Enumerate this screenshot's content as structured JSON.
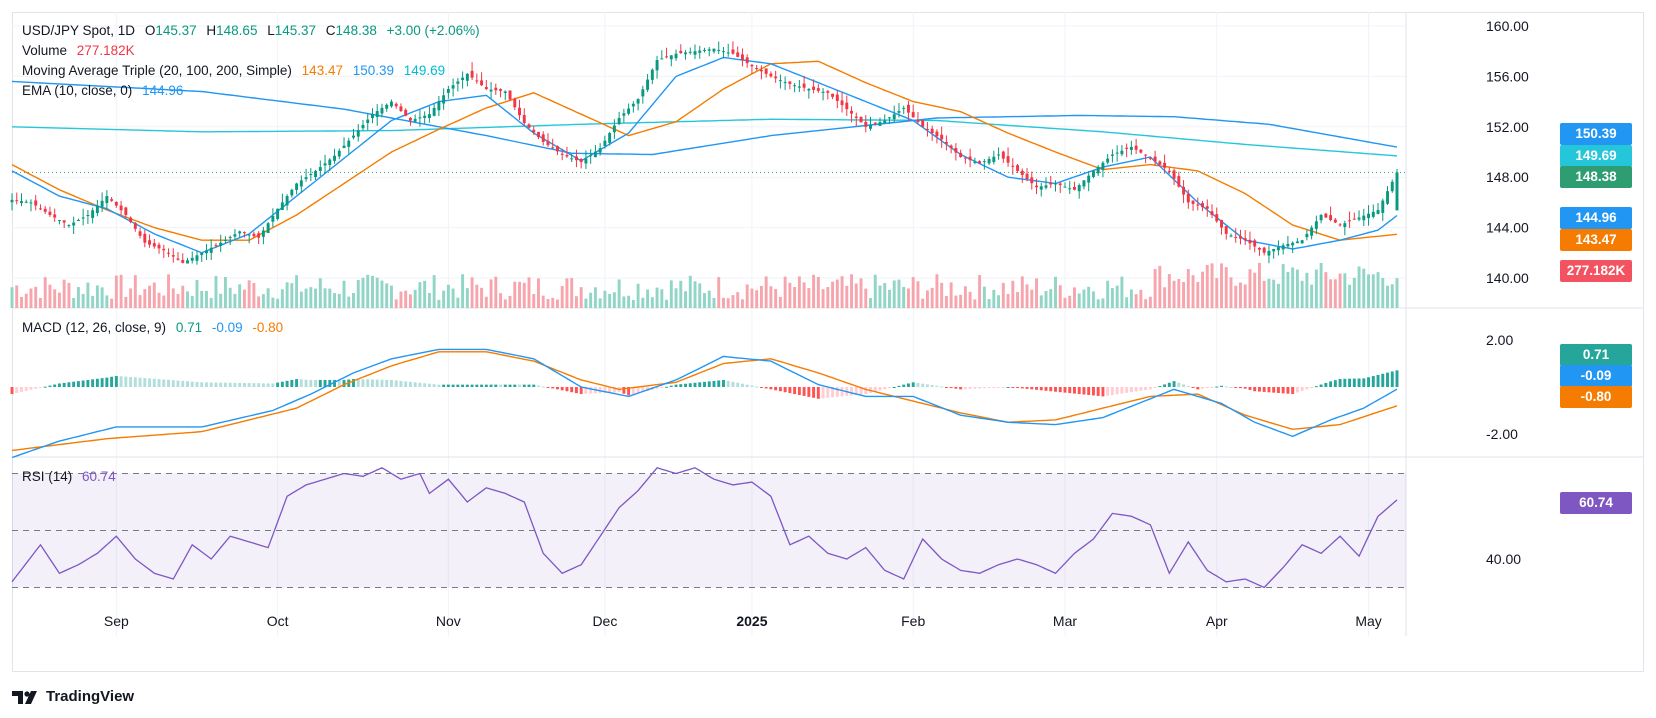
{
  "legend": {
    "symbol": "USD/JPY Spot, 1D",
    "o_label": "O",
    "o_val": "145.37",
    "h_label": "H",
    "h_val": "148.65",
    "l_label": "L",
    "l_val": "145.37",
    "c_label": "C",
    "c_val": "148.38",
    "change": "+3.00 (+2.06%)",
    "volume_label": "Volume",
    "volume_val": "277.182K",
    "ma_label": "Moving Average Triple (20, 100, 200, Simple)",
    "ma20": "143.47",
    "ma100": "150.39",
    "ma200": "149.69",
    "ema_label": "EMA (10, close, 0)",
    "ema_val": "144.96",
    "macd_label": "MACD (12, 26, close, 9)",
    "macd_hist": "0.71",
    "macd_line": "-0.09",
    "macd_signal": "-0.80",
    "rsi_label": "RSI (14)",
    "rsi_val": "60.74"
  },
  "tags": {
    "ma100": "150.39",
    "ma200": "149.69",
    "close": "148.38",
    "ema": "144.96",
    "ma20": "143.47",
    "volume": "277.182K",
    "macd_hist": "0.71",
    "macd_line": "-0.09",
    "macd_signal": "-0.80",
    "rsi": "60.74"
  },
  "colors": {
    "up": "#089981",
    "down": "#f23645",
    "vol_up": "#91d5c6",
    "vol_down": "#f7a5ad",
    "ma20": "#f57c00",
    "ma100": "#2196f3",
    "ma200": "#26c6da",
    "ema": "#2196f3",
    "macd": "#2196f3",
    "signal": "#f57c00",
    "rsi": "#7e57c2"
  },
  "footer": {
    "brand": "TradingView"
  },
  "chart_data": [
    {
      "type": "candlestick",
      "title": "USD/JPY Spot, 1D",
      "x_ticks": [
        "Sep",
        "Oct",
        "Nov",
        "Dec",
        "2025",
        "Feb",
        "Mar",
        "Apr",
        "May"
      ],
      "y_ticks": [
        "140.00",
        "144.00",
        "148.00",
        "152.00",
        "156.00",
        "160.00"
      ],
      "y_tick_values": [
        140,
        144,
        148,
        152,
        156,
        160
      ],
      "ylim": [
        139.5,
        161.5
      ],
      "close_anchors": [
        [
          0,
          146.2
        ],
        [
          4,
          146.0
        ],
        [
          8,
          145.0
        ],
        [
          12,
          144.2
        ],
        [
          16,
          145.0
        ],
        [
          20,
          146.5
        ],
        [
          24,
          145.0
        ],
        [
          28,
          142.8
        ],
        [
          32,
          142.2
        ],
        [
          36,
          141.2
        ],
        [
          40,
          142.0
        ],
        [
          44,
          142.8
        ],
        [
          48,
          143.7
        ],
        [
          52,
          143.2
        ],
        [
          56,
          145.5
        ],
        [
          60,
          147.5
        ],
        [
          64,
          148.5
        ],
        [
          68,
          149.7
        ],
        [
          72,
          151.3
        ],
        [
          76,
          153.0
        ],
        [
          80,
          154.0
        ],
        [
          84,
          152.5
        ],
        [
          88,
          153.0
        ],
        [
          92,
          155.0
        ],
        [
          96,
          156.2
        ],
        [
          100,
          155.0
        ],
        [
          104,
          154.8
        ],
        [
          108,
          152.3
        ],
        [
          112,
          150.8
        ],
        [
          116,
          149.8
        ],
        [
          120,
          149.2
        ],
        [
          124,
          150.3
        ],
        [
          128,
          152.7
        ],
        [
          132,
          154.2
        ],
        [
          136,
          157.3
        ],
        [
          140,
          157.8
        ],
        [
          144,
          158.0
        ],
        [
          148,
          158.2
        ],
        [
          152,
          157.8
        ],
        [
          156,
          156.8
        ],
        [
          160,
          156.0
        ],
        [
          164,
          155.4
        ],
        [
          168,
          155.0
        ],
        [
          172,
          154.7
        ],
        [
          176,
          153.4
        ],
        [
          180,
          152.0
        ],
        [
          184,
          152.5
        ],
        [
          188,
          153.5
        ],
        [
          192,
          152.0
        ],
        [
          196,
          151.0
        ],
        [
          200,
          149.6
        ],
        [
          204,
          149.1
        ],
        [
          208,
          149.8
        ],
        [
          212,
          148.5
        ],
        [
          216,
          147.2
        ],
        [
          220,
          147.5
        ],
        [
          224,
          147.0
        ],
        [
          228,
          148.5
        ],
        [
          232,
          149.8
        ],
        [
          236,
          150.4
        ],
        [
          240,
          149.5
        ],
        [
          244,
          148.5
        ],
        [
          248,
          146.0
        ],
        [
          252,
          145.5
        ],
        [
          256,
          143.5
        ],
        [
          260,
          143.0
        ],
        [
          264,
          142.0
        ],
        [
          268,
          142.6
        ],
        [
          272,
          143.0
        ],
        [
          276,
          145.0
        ],
        [
          280,
          144.2
        ],
        [
          284,
          144.8
        ],
        [
          288,
          145.4
        ],
        [
          292,
          148.38
        ]
      ],
      "last_candle": {
        "open": 145.37,
        "high": 148.65,
        "low": 145.37,
        "close": 148.38
      },
      "ma20_anchors": [
        [
          0,
          149.0
        ],
        [
          10,
          147.0
        ],
        [
          20,
          145.4
        ],
        [
          30,
          144.0
        ],
        [
          40,
          143.0
        ],
        [
          50,
          143.0
        ],
        [
          60,
          145.0
        ],
        [
          70,
          147.5
        ],
        [
          80,
          150.0
        ],
        [
          90,
          151.8
        ],
        [
          100,
          153.5
        ],
        [
          110,
          154.7
        ],
        [
          120,
          153.0
        ],
        [
          130,
          151.3
        ],
        [
          140,
          152.4
        ],
        [
          150,
          155.0
        ],
        [
          160,
          157.0
        ],
        [
          170,
          157.2
        ],
        [
          180,
          155.5
        ],
        [
          190,
          154.0
        ],
        [
          200,
          153.2
        ],
        [
          210,
          151.5
        ],
        [
          220,
          150.0
        ],
        [
          230,
          148.6
        ],
        [
          240,
          149.0
        ],
        [
          250,
          148.5
        ],
        [
          260,
          146.7
        ],
        [
          270,
          144.2
        ],
        [
          280,
          143.0
        ],
        [
          292,
          143.47
        ]
      ],
      "ma100_anchors": [
        [
          0,
          155.6
        ],
        [
          40,
          154.8
        ],
        [
          70,
          153.4
        ],
        [
          100,
          151.3
        ],
        [
          118,
          149.9
        ],
        [
          135,
          149.8
        ],
        [
          160,
          151.3
        ],
        [
          195,
          152.7
        ],
        [
          225,
          152.9
        ],
        [
          245,
          152.8
        ],
        [
          265,
          152.2
        ],
        [
          292,
          150.39
        ]
      ],
      "ma200_anchors": [
        [
          0,
          152.0
        ],
        [
          40,
          151.6
        ],
        [
          80,
          151.7
        ],
        [
          120,
          152.2
        ],
        [
          160,
          152.6
        ],
        [
          195,
          152.5
        ],
        [
          230,
          151.6
        ],
        [
          260,
          150.6
        ],
        [
          292,
          149.69
        ]
      ],
      "ema_anchors": [
        [
          0,
          148.5
        ],
        [
          10,
          146.5
        ],
        [
          20,
          145.5
        ],
        [
          30,
          143.5
        ],
        [
          40,
          142.0
        ],
        [
          50,
          143.5
        ],
        [
          60,
          146.5
        ],
        [
          70,
          149.5
        ],
        [
          80,
          152.5
        ],
        [
          90,
          154.0
        ],
        [
          100,
          154.5
        ],
        [
          110,
          151.5
        ],
        [
          120,
          149.3
        ],
        [
          130,
          151.5
        ],
        [
          140,
          156.0
        ],
        [
          150,
          157.5
        ],
        [
          160,
          157.0
        ],
        [
          170,
          155.5
        ],
        [
          180,
          154.0
        ],
        [
          190,
          152.5
        ],
        [
          200,
          149.8
        ],
        [
          210,
          148.0
        ],
        [
          220,
          147.5
        ],
        [
          230,
          148.8
        ],
        [
          240,
          149.6
        ],
        [
          250,
          146.0
        ],
        [
          260,
          143.0
        ],
        [
          270,
          142.3
        ],
        [
          280,
          143.0
        ],
        [
          288,
          143.8
        ],
        [
          292,
          144.96
        ]
      ],
      "volume_max_label": "277.182K"
    },
    {
      "type": "line",
      "title": "MACD (12, 26, close, 9)",
      "y_ticks": [
        "2.00",
        "-2.00"
      ],
      "y_tick_values": [
        2,
        -2
      ],
      "ylim": [
        -3.2,
        2.2
      ],
      "macd_anchors": [
        [
          0,
          -3.0
        ],
        [
          10,
          -2.3
        ],
        [
          22,
          -1.7
        ],
        [
          40,
          -1.7
        ],
        [
          55,
          -1.0
        ],
        [
          63,
          -0.3
        ],
        [
          72,
          0.6
        ],
        [
          80,
          1.2
        ],
        [
          90,
          1.6
        ],
        [
          100,
          1.6
        ],
        [
          110,
          1.2
        ],
        [
          120,
          0.0
        ],
        [
          130,
          -0.4
        ],
        [
          140,
          0.3
        ],
        [
          150,
          1.3
        ],
        [
          160,
          1.1
        ],
        [
          170,
          0.1
        ],
        [
          180,
          -0.4
        ],
        [
          190,
          -0.4
        ],
        [
          200,
          -1.2
        ],
        [
          210,
          -1.5
        ],
        [
          220,
          -1.6
        ],
        [
          230,
          -1.3
        ],
        [
          240,
          -0.5
        ],
        [
          245,
          -0.1
        ],
        [
          255,
          -0.7
        ],
        [
          262,
          -1.5
        ],
        [
          270,
          -2.1
        ],
        [
          278,
          -1.4
        ],
        [
          285,
          -0.9
        ],
        [
          292,
          -0.09
        ]
      ],
      "signal_anchors": [
        [
          0,
          -2.7
        ],
        [
          20,
          -2.2
        ],
        [
          40,
          -1.9
        ],
        [
          60,
          -0.9
        ],
        [
          70,
          0.1
        ],
        [
          80,
          0.9
        ],
        [
          90,
          1.5
        ],
        [
          100,
          1.5
        ],
        [
          110,
          1.1
        ],
        [
          120,
          0.3
        ],
        [
          128,
          -0.1
        ],
        [
          140,
          0.2
        ],
        [
          150,
          1.0
        ],
        [
          160,
          1.2
        ],
        [
          170,
          0.6
        ],
        [
          180,
          -0.1
        ],
        [
          190,
          -0.6
        ],
        [
          200,
          -1.1
        ],
        [
          210,
          -1.5
        ],
        [
          220,
          -1.4
        ],
        [
          230,
          -0.9
        ],
        [
          240,
          -0.4
        ],
        [
          250,
          -0.3
        ],
        [
          260,
          -1.2
        ],
        [
          270,
          -1.8
        ],
        [
          280,
          -1.6
        ],
        [
          292,
          -0.8
        ]
      ],
      "last_histogram": 0.71
    },
    {
      "type": "line",
      "title": "RSI (14)",
      "y_ticks": [
        "40.00"
      ],
      "y_tick_values": [
        40
      ],
      "bands": [
        30,
        50,
        70
      ],
      "ylim": [
        25,
        75
      ],
      "rsi_anchors": [
        [
          0,
          32
        ],
        [
          6,
          45
        ],
        [
          10,
          35
        ],
        [
          14,
          38
        ],
        [
          18,
          42
        ],
        [
          22,
          48
        ],
        [
          26,
          40
        ],
        [
          30,
          35
        ],
        [
          34,
          33
        ],
        [
          38,
          45
        ],
        [
          42,
          40
        ],
        [
          46,
          48
        ],
        [
          50,
          46
        ],
        [
          54,
          44
        ],
        [
          58,
          62
        ],
        [
          62,
          66
        ],
        [
          66,
          68
        ],
        [
          70,
          70
        ],
        [
          74,
          69
        ],
        [
          78,
          72
        ],
        [
          82,
          68
        ],
        [
          86,
          70
        ],
        [
          88,
          63
        ],
        [
          92,
          68
        ],
        [
          96,
          60
        ],
        [
          100,
          65
        ],
        [
          104,
          63
        ],
        [
          108,
          60
        ],
        [
          112,
          42
        ],
        [
          116,
          35
        ],
        [
          120,
          38
        ],
        [
          124,
          48
        ],
        [
          128,
          58
        ],
        [
          132,
          64
        ],
        [
          136,
          72
        ],
        [
          140,
          70
        ],
        [
          144,
          72
        ],
        [
          148,
          68
        ],
        [
          152,
          66
        ],
        [
          156,
          67
        ],
        [
          160,
          62
        ],
        [
          164,
          45
        ],
        [
          168,
          48
        ],
        [
          172,
          42
        ],
        [
          176,
          40
        ],
        [
          180,
          44
        ],
        [
          184,
          36
        ],
        [
          188,
          33
        ],
        [
          192,
          47
        ],
        [
          196,
          40
        ],
        [
          200,
          36
        ],
        [
          204,
          35
        ],
        [
          208,
          38
        ],
        [
          212,
          40
        ],
        [
          216,
          38
        ],
        [
          220,
          35
        ],
        [
          224,
          42
        ],
        [
          228,
          47
        ],
        [
          232,
          56
        ],
        [
          236,
          55
        ],
        [
          240,
          52
        ],
        [
          244,
          35
        ],
        [
          248,
          46
        ],
        [
          252,
          36
        ],
        [
          256,
          32
        ],
        [
          260,
          33
        ],
        [
          264,
          30
        ],
        [
          268,
          37
        ],
        [
          272,
          45
        ],
        [
          276,
          42
        ],
        [
          280,
          48
        ],
        [
          284,
          41
        ],
        [
          288,
          55
        ],
        [
          292,
          60.74
        ]
      ]
    }
  ]
}
